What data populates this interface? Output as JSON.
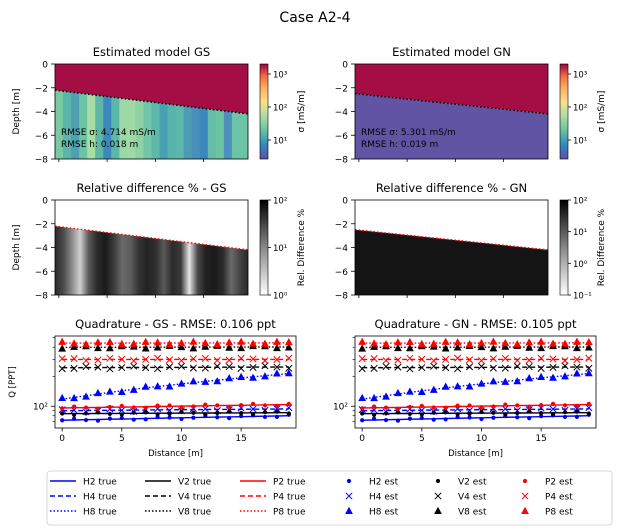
{
  "figure_title": "Case A2-4",
  "colors": {
    "top_layer": "#a50e45",
    "gn_bottom": "#6254a5",
    "h_color": "#0000ff",
    "v_color": "#000000",
    "p_color": "#ff0000",
    "boundary_dotted": "#000000",
    "boundary_red_dotted": "#ff0000",
    "diff_dark": "#141414"
  },
  "chart_data": [
    {
      "id": "gs_model",
      "type": "heatmap",
      "title": "Estimated model GS",
      "ylabel": "Depth [m]",
      "ylim": [
        -8,
        0
      ],
      "yticks": [
        "0",
        "−2",
        "−4",
        "−6",
        "−8"
      ],
      "colorbar": {
        "label": "σ [mS/m]",
        "ticks": [
          "10³",
          "10²",
          "10¹"
        ],
        "scale": "log"
      },
      "annotation": [
        "RMSE σ: 4.714 mS/m",
        "RMSE h: 0.018 m"
      ],
      "boundary_depth": {
        "start": -2.2,
        "end": -4.2
      },
      "column_colors": [
        "#79c9a4",
        "#5bb6a9",
        "#4fa1b1",
        "#6cc3a6",
        "#a7dca4",
        "#5cb7a9",
        "#3e88bb",
        "#5bb7a9",
        "#9bd8a4",
        "#a0d9a4",
        "#8ed1a4",
        "#72c5a6",
        "#5db8a9",
        "#4aa0b3",
        "#58b3aa",
        "#5db8a9",
        "#4e9cb4",
        "#4a8fb9",
        "#3d87bb",
        "#66bea8",
        "#6ec4a6",
        "#4f8fbb",
        "#6dc3a6",
        "#6dc3a6"
      ]
    },
    {
      "id": "gn_model",
      "type": "heatmap",
      "title": "Estimated model GN",
      "ylim": [
        -8,
        0
      ],
      "yticks": [
        "0",
        "−2",
        "−4",
        "−6",
        "−8"
      ],
      "colorbar": {
        "label": "σ [mS/m]",
        "ticks": [
          "10³",
          "10²",
          "10¹"
        ],
        "scale": "log"
      },
      "annotation": [
        "RMSE σ: 5.301 mS/m",
        "RMSE h: 0.019 m"
      ],
      "boundary_depth": {
        "start": -2.5,
        "end": -4.2
      }
    },
    {
      "id": "gs_diff",
      "type": "heatmap",
      "title": "Relative difference % - GS",
      "ylabel": "Depth [m]",
      "ylim": [
        -8,
        0
      ],
      "yticks": [
        "0",
        "−2",
        "−4",
        "−6",
        "−8"
      ],
      "colorbar": {
        "label": "Rel. Difference %",
        "ticks": [
          "10²",
          "10¹",
          "10⁰"
        ],
        "scale": "log"
      },
      "boundary_depth": {
        "start": -2.2,
        "end": -4.2
      },
      "column_grays": [
        "#2a2a2a",
        "#4a4a4a",
        "#8a8a8a",
        "#d0d0d0",
        "#5a5a5a",
        "#2b2b2b",
        "#1a1a1a",
        "#3a3a3a",
        "#6a6a6a",
        "#5d5d5d",
        "#333333",
        "#222222",
        "#2f2f2f",
        "#5a5a5a",
        "#2a2a2a",
        "#3a3a3a",
        "#e6e6e6",
        "#4a4a4a",
        "#1f1f1f",
        "#1a1a1a",
        "#2a2a2a",
        "#6a6a6a",
        "#444444",
        "#2a2a2a"
      ]
    },
    {
      "id": "gn_diff",
      "type": "heatmap",
      "title": "Relative difference % - GN",
      "ylim": [
        -8,
        0
      ],
      "yticks": [
        "0",
        "−2",
        "−4",
        "−6",
        "−8"
      ],
      "colorbar": {
        "label": "Rel. Difference %",
        "ticks": [
          "10²",
          "10¹",
          "10⁰",
          "10⁻¹"
        ],
        "scale": "log"
      },
      "boundary_depth": {
        "start": -2.5,
        "end": -4.2
      }
    },
    {
      "id": "gs_quad",
      "type": "line",
      "title": "Quadrature - GS - RMSE: 0.106 ppt",
      "xlabel": "Distance [m]",
      "ylabel": "Q [PPT]",
      "xlim": [
        -0.6,
        19.6
      ],
      "ylim": [
        60,
        520
      ],
      "yscale": "log",
      "xticks": [
        0,
        5,
        10,
        15
      ],
      "ytick_label": "10²",
      "x": [
        0,
        1,
        2,
        3,
        4,
        5,
        6,
        7,
        8,
        9,
        10,
        11,
        12,
        13,
        14,
        15,
        16,
        17,
        18,
        19
      ],
      "series": [
        {
          "name": "H2 true",
          "start": 72,
          "end": 80
        },
        {
          "name": "H4 true",
          "start": 90,
          "end": 94
        },
        {
          "name": "H8 true",
          "start": 118,
          "end": 215
        },
        {
          "name": "V2 true",
          "start": 84,
          "end": 86
        },
        {
          "name": "V4 true",
          "start": 247,
          "end": 251
        },
        {
          "name": "V8 true",
          "start": 398,
          "end": 402
        },
        {
          "name": "P2 true",
          "start": 96,
          "end": 104
        },
        {
          "name": "P4 true",
          "start": 300,
          "end": 300
        },
        {
          "name": "P8 true",
          "start": 440,
          "end": 443
        }
      ]
    },
    {
      "id": "gn_quad",
      "type": "line",
      "title": "Quadrature - GN - RMSE: 0.105 ppt",
      "xlabel": "Distance [m]",
      "xlim": [
        -0.6,
        19.6
      ],
      "ylim": [
        60,
        520
      ],
      "yscale": "log",
      "xticks": [
        0,
        5,
        10,
        15
      ],
      "ytick_label": "10²",
      "x": [
        0,
        1,
        2,
        3,
        4,
        5,
        6,
        7,
        8,
        9,
        10,
        11,
        12,
        13,
        14,
        15,
        16,
        17,
        18,
        19
      ],
      "series": [
        {
          "name": "H2 true",
          "start": 72,
          "end": 80
        },
        {
          "name": "H4 true",
          "start": 90,
          "end": 94
        },
        {
          "name": "H8 true",
          "start": 118,
          "end": 215
        },
        {
          "name": "V2 true",
          "start": 84,
          "end": 86
        },
        {
          "name": "V4 true",
          "start": 247,
          "end": 251
        },
        {
          "name": "V8 true",
          "start": 398,
          "end": 402
        },
        {
          "name": "P2 true",
          "start": 96,
          "end": 104
        },
        {
          "name": "P4 true",
          "start": 300,
          "end": 300
        },
        {
          "name": "P8 true",
          "start": 440,
          "end": 443
        }
      ]
    }
  ],
  "legend": [
    [
      "H2 true",
      "H4 true",
      "H8 true"
    ],
    [
      "V2 true",
      "V4 true",
      "V8 true"
    ],
    [
      "P2 true",
      "P4 true",
      "P8 true"
    ],
    [
      "H2 est",
      "H4 est",
      "H8 est"
    ],
    [
      "V2 est",
      "V4 est",
      "V8 est"
    ],
    [
      "P2 est",
      "P4 est",
      "P8 est"
    ]
  ]
}
